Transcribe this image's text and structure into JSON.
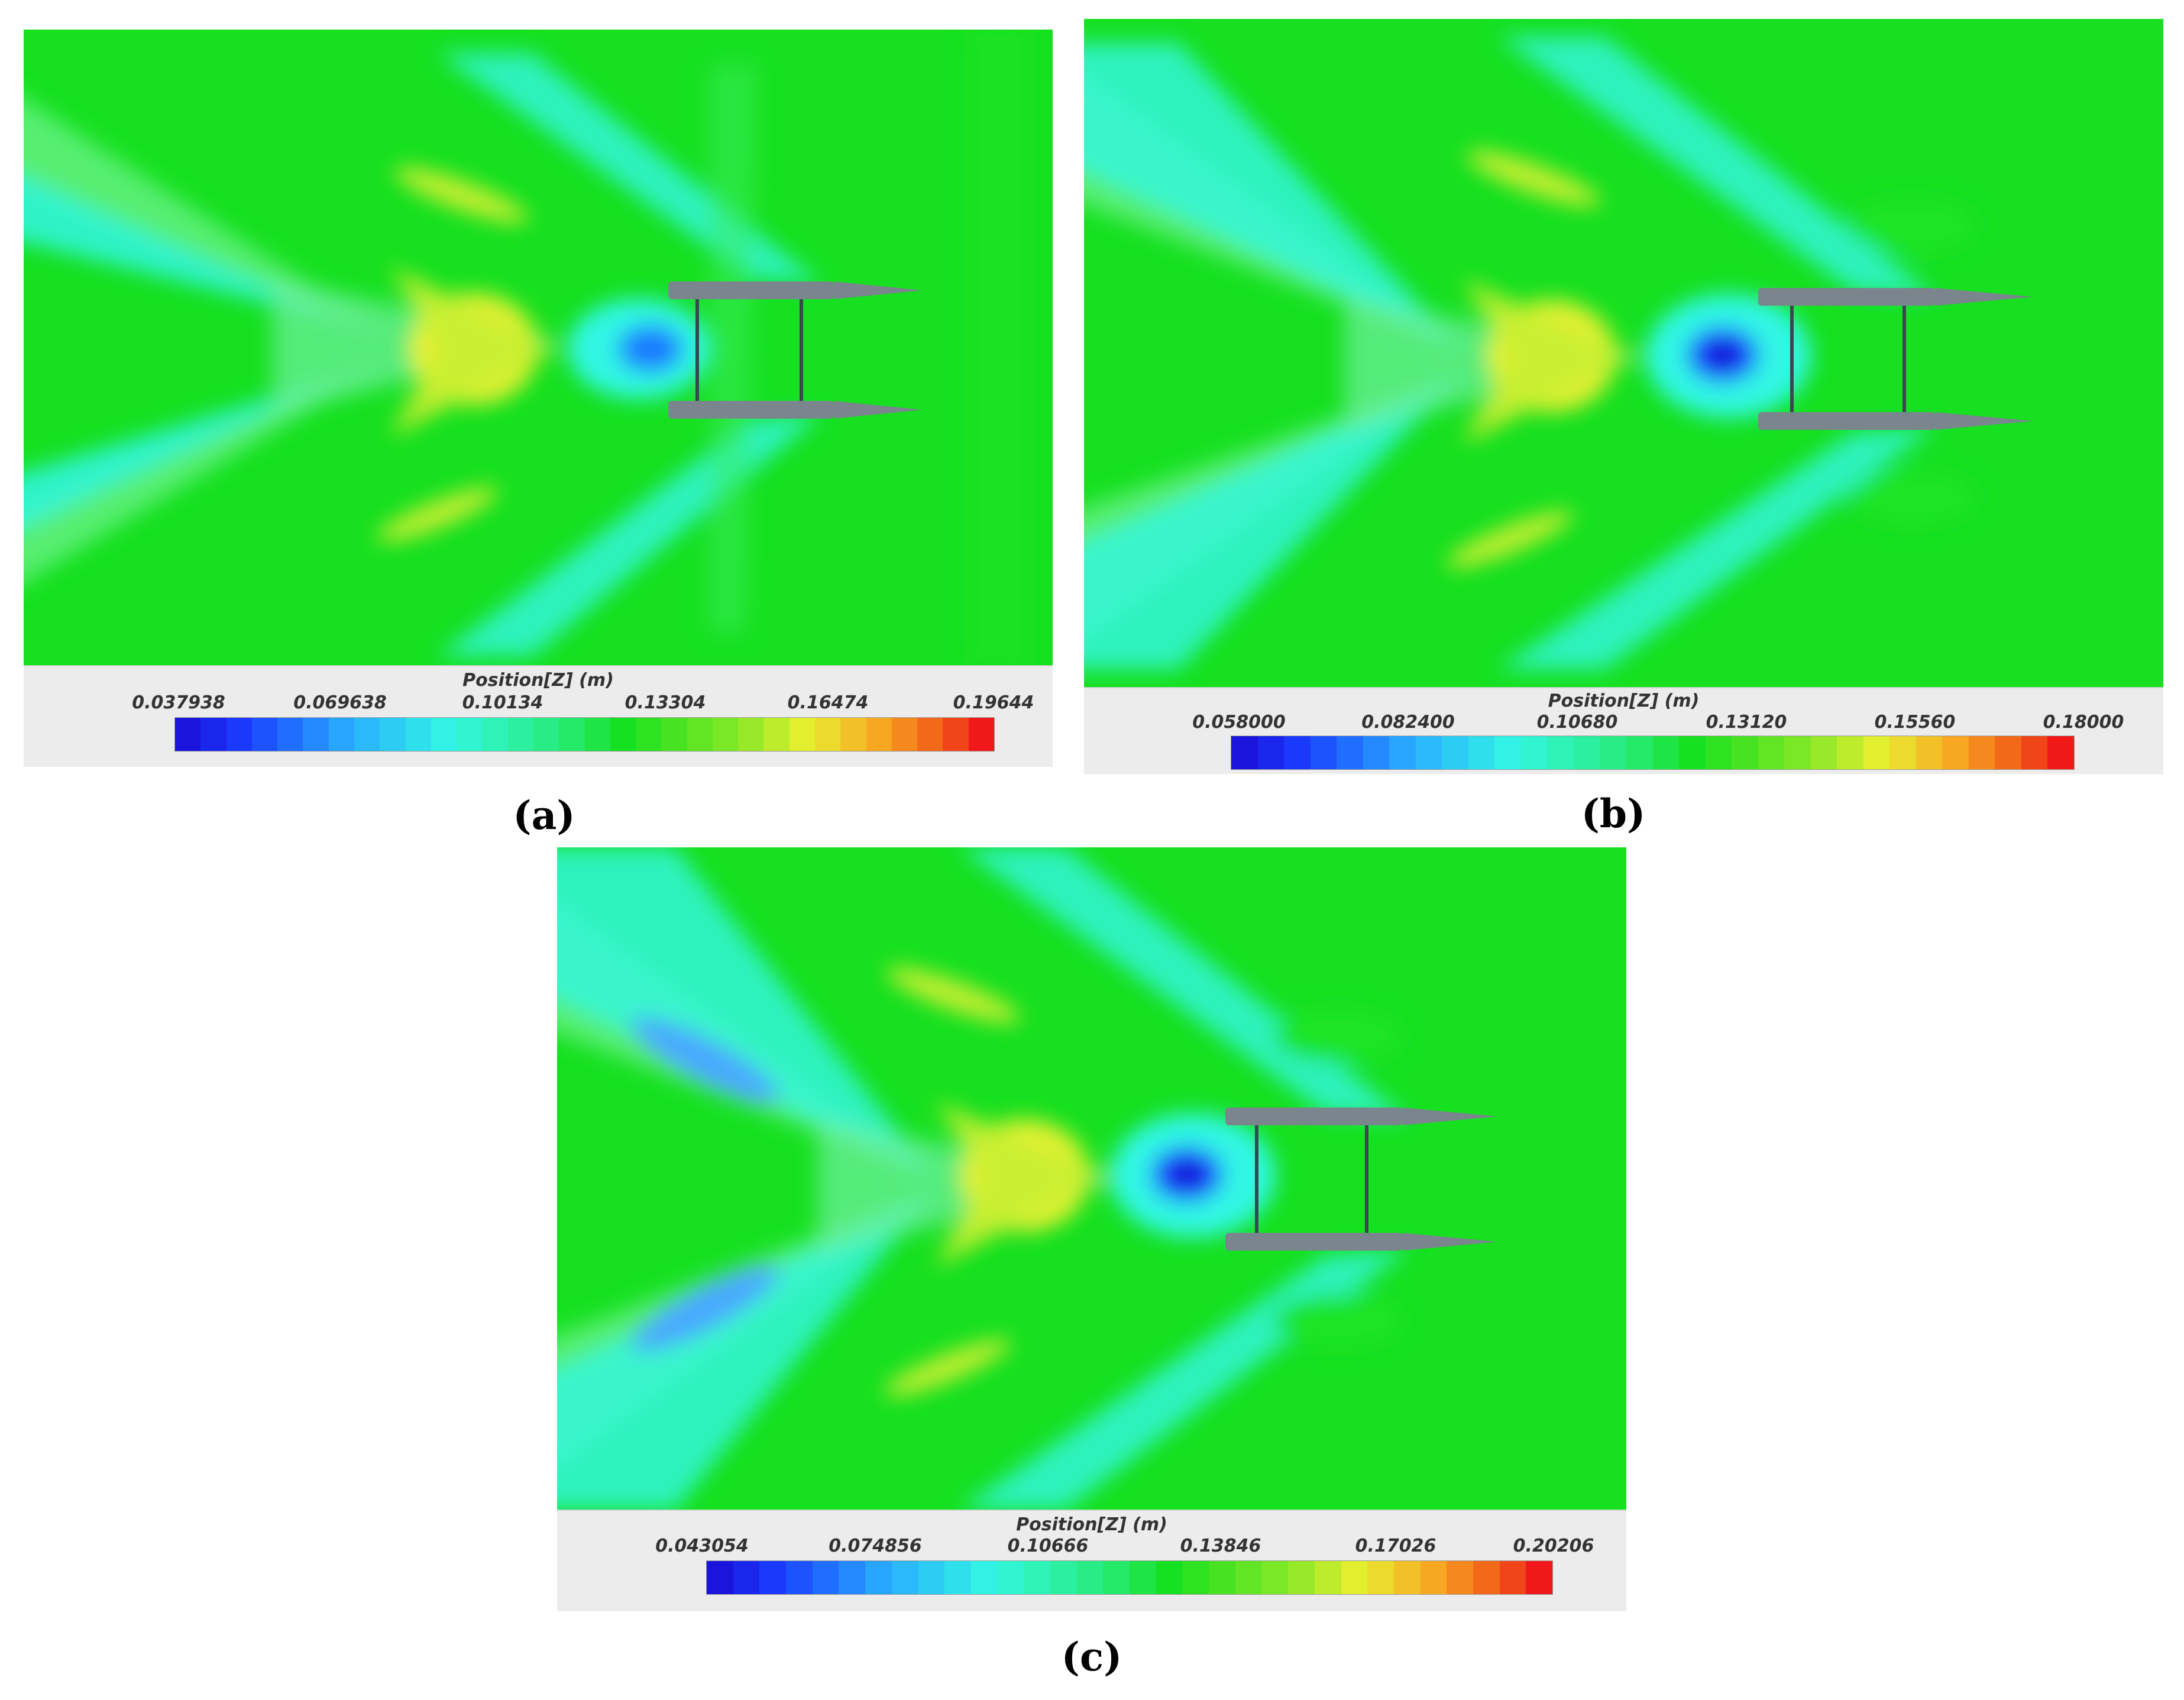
{
  "panels": [
    {
      "id": "a",
      "caption": "(a)",
      "legend_title": "Position[Z] (m)",
      "ticks": [
        "0.037938",
        "0.069638",
        "0.10134",
        "0.13304",
        "0.16474",
        "0.19644"
      ]
    },
    {
      "id": "b",
      "caption": "(b)",
      "legend_title": "Position[Z] (m)",
      "ticks": [
        "0.058000",
        "0.082400",
        "0.10680",
        "0.13120",
        "0.15560",
        "0.18000"
      ]
    },
    {
      "id": "c",
      "caption": "(c)",
      "legend_title": "Position[Z] (m)",
      "ticks": [
        "0.043054",
        "0.074856",
        "0.10666",
        "0.13846",
        "0.17026",
        "0.20206"
      ]
    }
  ],
  "colors": {
    "field_green": "#16e020",
    "light_green": "#5ef07a",
    "cyan": "#33f6e4",
    "blue": "#1a3cff",
    "deep_blue": "#1010c8",
    "yellow": "#e8f030",
    "orange": "#f8a020",
    "red": "#f01818",
    "hull": "#7b858e"
  }
}
